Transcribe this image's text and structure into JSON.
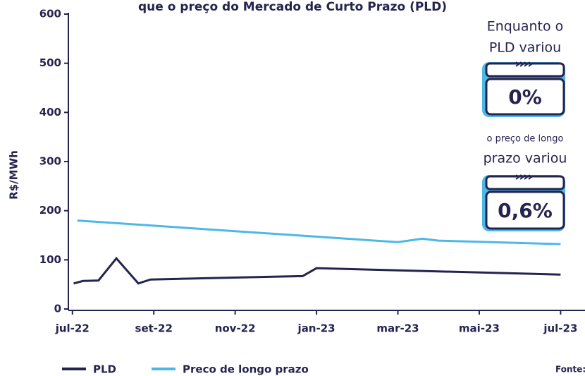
{
  "chart_data": {
    "type": "line",
    "title": "que o preço do Mercado de Curto Prazo (PLD)",
    "ylabel": "R$/MWh",
    "xlim": [
      -0.1,
      12.6
    ],
    "xticks": [
      {
        "value": 0,
        "label": "jul-22"
      },
      {
        "value": 2,
        "label": "set-22"
      },
      {
        "value": 4,
        "label": "nov-22"
      },
      {
        "value": 6,
        "label": "jan-23"
      },
      {
        "value": 8,
        "label": "mar-23"
      },
      {
        "value": 10,
        "label": "mai-23"
      },
      {
        "value": 12,
        "label": "jul-23"
      }
    ],
    "ylim": [
      0,
      600
    ],
    "yticks": [
      0,
      100,
      200,
      300,
      400,
      500,
      600
    ],
    "series": [
      {
        "name": "PLD",
        "color": "#24244f",
        "x": [
          0.03,
          0.26,
          0.64,
          1.08,
          1.62,
          1.92,
          5.66,
          6.0,
          12.0
        ],
        "values": [
          52,
          57,
          58,
          103,
          52,
          60,
          67,
          83,
          70
        ]
      },
      {
        "name": "Preco de longo prazo",
        "color": "#4db8e8",
        "x": [
          0.12,
          8.0,
          8.6,
          9.0,
          12.0
        ],
        "values": [
          180,
          136,
          143,
          139,
          132
        ]
      }
    ],
    "annotations": [
      {
        "lines": [
          "Enquanto o",
          "PLD variou"
        ],
        "value": "0%"
      },
      {
        "lines": [
          "o preço de longo",
          "prazo variou"
        ],
        "value": "0,6%"
      }
    ],
    "source": "Fonte: DCIDE"
  }
}
